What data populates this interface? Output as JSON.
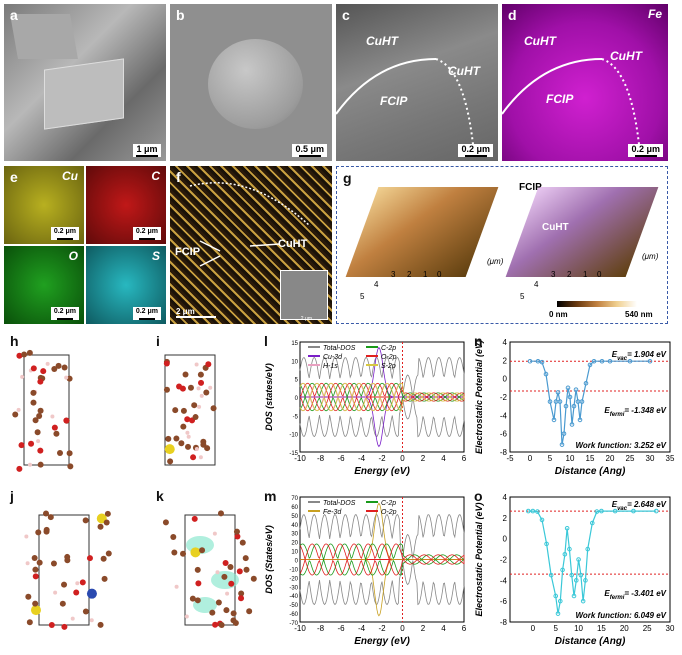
{
  "panels": {
    "a": {
      "label": "a",
      "scale": "1 μm"
    },
    "b": {
      "label": "b",
      "scale": "0.5 μm"
    },
    "c": {
      "label": "c",
      "scale": "0.2 μm",
      "ann1": "CuHT",
      "ann2": "CuHT",
      "ann3": "FCIP"
    },
    "d": {
      "label": "d",
      "scale": "0.2 μm",
      "ann1": "CuHT",
      "ann2": "CuHT",
      "ann3": "FCIP",
      "element": "Fe"
    },
    "e": {
      "label": "e",
      "maps": [
        {
          "element": "Cu",
          "scale": "0.2 μm",
          "color": "#c8c020"
        },
        {
          "element": "C",
          "scale": "0.2 μm",
          "color": "#c01818"
        },
        {
          "element": "O",
          "scale": "0.2 μm",
          "color": "#20a020"
        },
        {
          "element": "S",
          "scale": "0.2 μm",
          "color": "#20b0b8"
        }
      ]
    },
    "f": {
      "label": "f",
      "ann1": "FCIP",
      "ann2": "CuHT",
      "scale": "2 μm",
      "inset_scale": "2 μm"
    },
    "g": {
      "label": "g",
      "ann_fcip": "FCIP",
      "ann_cuht": "CuHT",
      "unit": "(μm)",
      "cbar_min": "0 nm",
      "cbar_max": "540 nm",
      "axis_ticks": [
        "0",
        "1",
        "2",
        "3",
        "4",
        "5"
      ]
    },
    "h": {
      "label": "h"
    },
    "i": {
      "label": "i"
    },
    "j": {
      "label": "j"
    },
    "k": {
      "label": "k"
    }
  },
  "chart_data": [
    {
      "id": "l",
      "type": "line",
      "title": "",
      "xlabel": "Energy (eV)",
      "ylabel": "DOS (states/eV)",
      "xlim": [
        -10,
        6
      ],
      "ylim": [
        -15,
        15
      ],
      "xticks": [
        -10,
        -8,
        -6,
        -4,
        -2,
        0,
        2,
        4,
        6
      ],
      "yticks": [
        -15,
        -10,
        -5,
        0,
        5,
        10,
        15
      ],
      "series": [
        {
          "name": "Total-DOS",
          "color": "#888888"
        },
        {
          "name": "Cu-3d",
          "color": "#7a1fc8"
        },
        {
          "name": "H-1s",
          "color": "#e8a0c0"
        },
        {
          "name": "C-2p",
          "color": "#1a9a1a"
        },
        {
          "name": "O-2p",
          "color": "#e02020"
        },
        {
          "name": "S-2p",
          "color": "#d8c840"
        }
      ]
    },
    {
      "id": "m",
      "type": "line",
      "title": "",
      "xlabel": "Energy (eV)",
      "ylabel": "DOS (States/eV)",
      "xlim": [
        -10,
        6
      ],
      "ylim": [
        -70,
        70
      ],
      "xticks": [
        -10,
        -8,
        -6,
        -4,
        -2,
        0,
        2,
        4,
        6
      ],
      "yticks": [
        -70,
        -60,
        -50,
        -40,
        -30,
        -20,
        -10,
        0,
        10,
        20,
        30,
        40,
        50,
        60,
        70
      ],
      "series": [
        {
          "name": "Total-DOS",
          "color": "#888888"
        },
        {
          "name": "Fe-3d",
          "color": "#c8a020"
        },
        {
          "name": "C-2p",
          "color": "#1a9a1a"
        },
        {
          "name": "O-2p",
          "color": "#e02020"
        }
      ]
    },
    {
      "id": "n",
      "type": "line",
      "xlabel": "Distance (Ang)",
      "ylabel": "Electrostatic Potential (eV)",
      "xlim": [
        -5,
        35
      ],
      "ylim": [
        -8,
        4
      ],
      "xticks": [
        -5,
        0,
        5,
        10,
        15,
        20,
        25,
        30,
        35
      ],
      "yticks": [
        -8,
        -6,
        -4,
        -2,
        0,
        2,
        4
      ],
      "evac": 1.904,
      "efermi": -1.348,
      "evac_label": "= 1.904 eV",
      "efermi_label": "= -1.348 eV",
      "wf_label": "Work function: 3.252 eV",
      "color": "#4a9ad0",
      "x": [
        0,
        2,
        3,
        4,
        5,
        6,
        6.5,
        7,
        7.5,
        8,
        8.5,
        9,
        9.5,
        10,
        10.5,
        11,
        11.5,
        12,
        12.5,
        13,
        14,
        15,
        16,
        18,
        20,
        25,
        30
      ],
      "y": [
        1.9,
        1.9,
        1.8,
        0.5,
        -2.5,
        -4.5,
        -2.5,
        -1.5,
        -2.5,
        -7.2,
        -6.0,
        -3.0,
        -1.0,
        -2.0,
        -5.0,
        -3.0,
        -1.2,
        -2.5,
        -4.5,
        -2.5,
        -0.5,
        1.5,
        1.9,
        1.9,
        1.9,
        1.9,
        1.9
      ]
    },
    {
      "id": "o",
      "type": "line",
      "xlabel": "Distance (Ang)",
      "ylabel": "Electrostatic Potential (eV)",
      "xlim": [
        -5,
        30
      ],
      "ylim": [
        -8,
        4
      ],
      "xticks": [
        0,
        5,
        10,
        15,
        20,
        25,
        30
      ],
      "yticks": [
        -8,
        -6,
        -4,
        -2,
        0,
        2,
        4
      ],
      "evac": 2.648,
      "efermi": -3.401,
      "evac_label": "= 2.648 eV",
      "efermi_label": "= -3.401 eV",
      "wf_label": "Work function: 6.049 eV",
      "color": "#3ac8d8",
      "x": [
        -1,
        0,
        1,
        2,
        3,
        4,
        5,
        5.5,
        6,
        6.5,
        7,
        7.5,
        8,
        8.5,
        9,
        9.5,
        10,
        10.5,
        11,
        11.5,
        12,
        13,
        14,
        15,
        18,
        22,
        27
      ],
      "y": [
        2.65,
        2.65,
        2.6,
        1.8,
        -0.5,
        -3.5,
        -5.5,
        -7.2,
        -6.0,
        -3.0,
        -1.5,
        1.0,
        -1.0,
        -3.5,
        -5.5,
        -4.0,
        -2.0,
        -3.5,
        -6.0,
        -4.0,
        -1.0,
        1.5,
        2.6,
        2.65,
        2.65,
        2.65,
        2.65
      ]
    }
  ],
  "legend_labels": {
    "l": [
      "Total-DOS",
      "Cu-3d",
      "H-1s",
      "C-2p",
      "O-2p",
      "S-2p"
    ],
    "m": [
      "Total-DOS",
      "Fe-3d",
      "C-2p",
      "O-2p"
    ]
  },
  "colors": {
    "atom_c": "#8a4a2a",
    "atom_o": "#d02020",
    "atom_s": "#e8d020",
    "atom_cu": "#2a4ab0",
    "atom_h": "#f0c8c8",
    "atom_fe": "#c89020"
  }
}
